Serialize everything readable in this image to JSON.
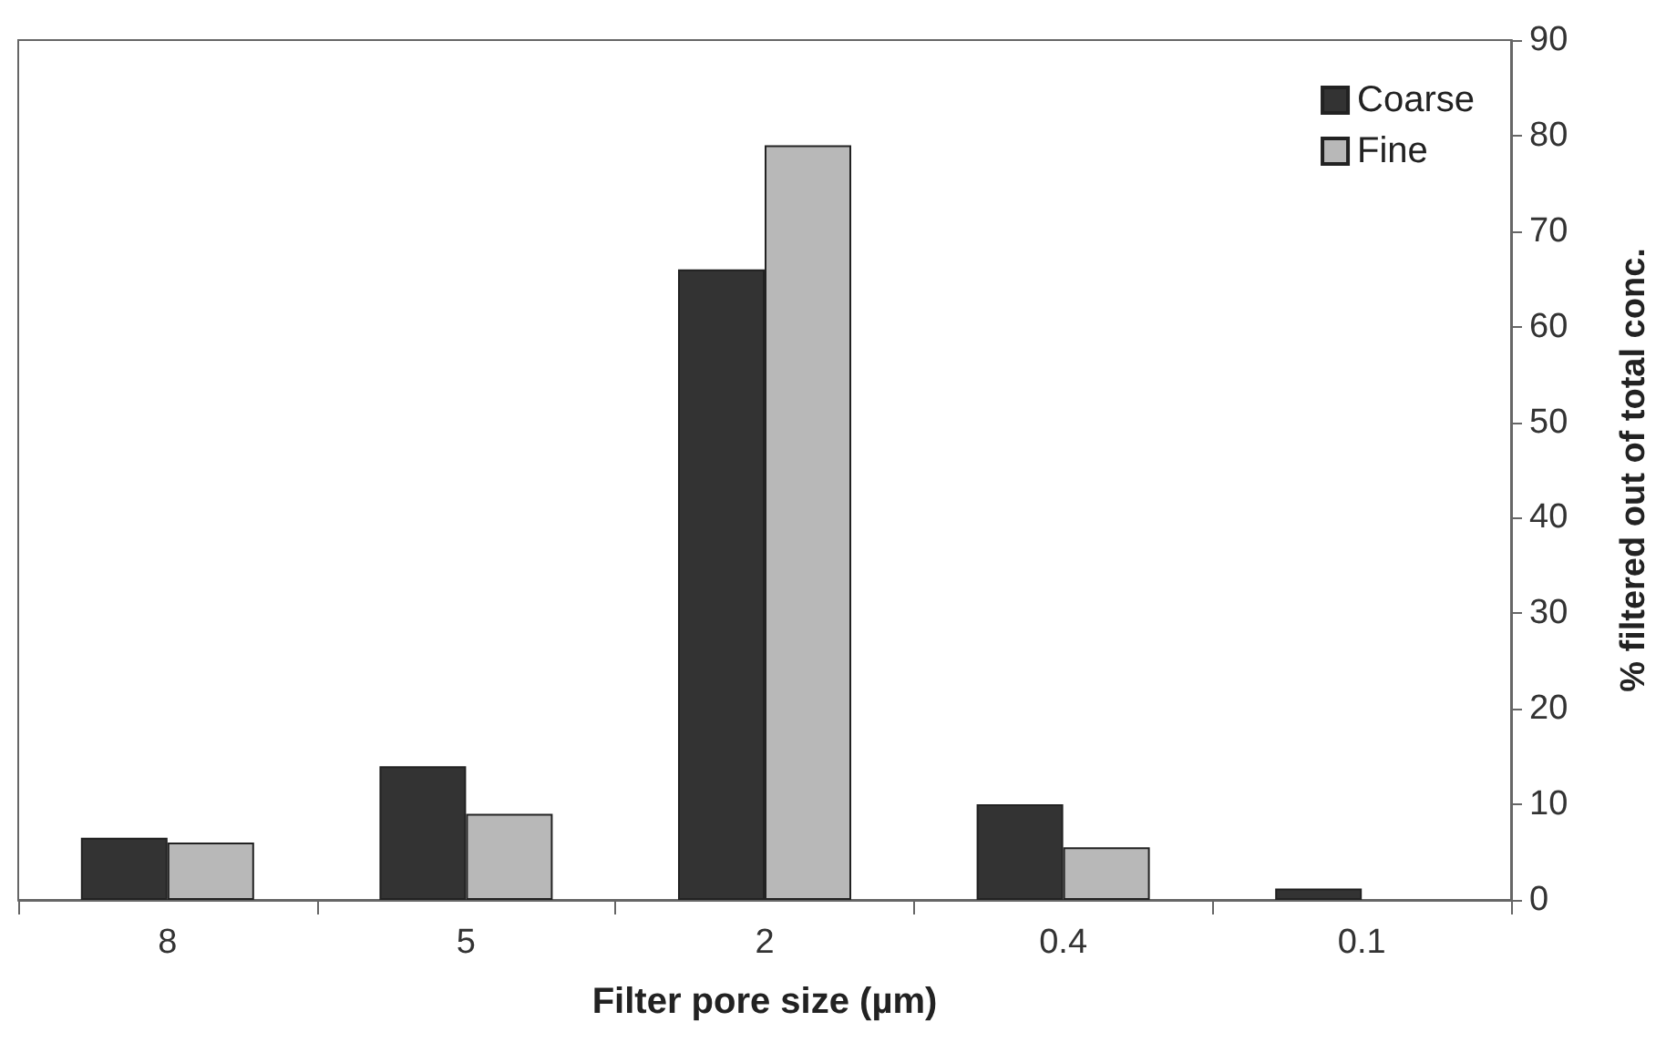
{
  "chart_data": {
    "type": "bar",
    "xlabel": "Filter pore size (µm)",
    "ylabel": "% filtered out of total conc.",
    "categories": [
      "8",
      "5",
      "2",
      "0.4",
      "0.1"
    ],
    "series": [
      {
        "name": "Coarse",
        "color": "#333333",
        "values": [
          6.5,
          14,
          66,
          10,
          1.2
        ]
      },
      {
        "name": "Fine",
        "color": "#b8b8b8",
        "values": [
          6,
          9,
          79,
          5.5,
          null
        ]
      }
    ],
    "ylim": [
      0,
      90
    ],
    "yticks": [
      0,
      10,
      20,
      30,
      40,
      50,
      60,
      70,
      80,
      90
    ],
    "grid": false,
    "legend": "top right"
  }
}
